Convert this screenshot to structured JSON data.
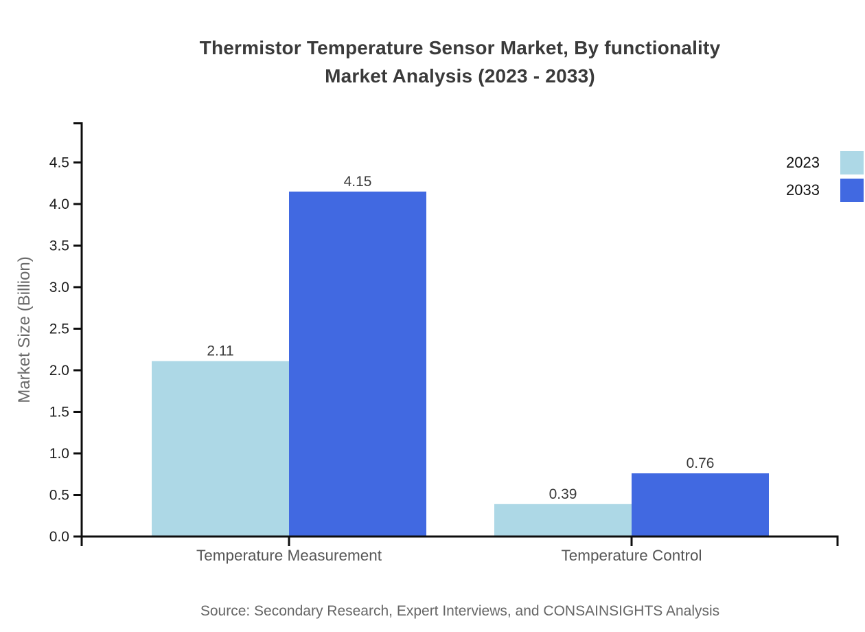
{
  "title": {
    "line1": "Thermistor Temperature Sensor Market, By functionality",
    "line2": "Market Analysis (2023 - 2033)"
  },
  "y_axis_title": "Market Size (Billion)",
  "source": "Source: Secondary Research, Expert Interviews, and CONSAINSIGHTS Analysis",
  "legend": {
    "items": [
      {
        "label": "2023",
        "color": "#add8e6"
      },
      {
        "label": "2033",
        "color": "#4169e1"
      }
    ],
    "position": "upper-right, swatches clipped at right edge"
  },
  "colors": {
    "series_2023": "#add8e6",
    "series_2033": "#4169e1",
    "axis": "#0d0d0d",
    "tick_label": "#1c1c1c",
    "category_label": "#565656",
    "value_label": "#3a3a3a",
    "title": "#3a3a3a",
    "ylabel": "#6a6a6a",
    "source": "#666666"
  },
  "chart_data": {
    "type": "bar",
    "title": "Thermistor Temperature Sensor Market, By functionality Market Analysis (2023 - 2033)",
    "categories": [
      "Temperature Measurement",
      "Temperature Control"
    ],
    "series": [
      {
        "name": "2023",
        "color": "#add8e6",
        "values": [
          2.11,
          0.39
        ]
      },
      {
        "name": "2033",
        "color": "#4169e1",
        "values": [
          4.15,
          0.76
        ]
      }
    ],
    "value_labels": [
      [
        "2.11",
        "0.39"
      ],
      [
        "4.15",
        "0.76"
      ]
    ],
    "xlabel": "",
    "ylabel": "Market Size (Billion)",
    "ylim": [
      0,
      5
    ],
    "yticks": [
      0.0,
      0.5,
      1.0,
      1.5,
      2.0,
      2.5,
      3.0,
      3.5,
      4.0,
      4.5
    ],
    "ytick_labels": [
      "0.0",
      "0.5",
      "1.0",
      "1.5",
      "2.0",
      "2.5",
      "3.0",
      "3.5",
      "4.0",
      "4.5"
    ],
    "grid": false,
    "bar_value_labels_shown": true,
    "legend_entries": [
      "2023",
      "2033"
    ]
  }
}
